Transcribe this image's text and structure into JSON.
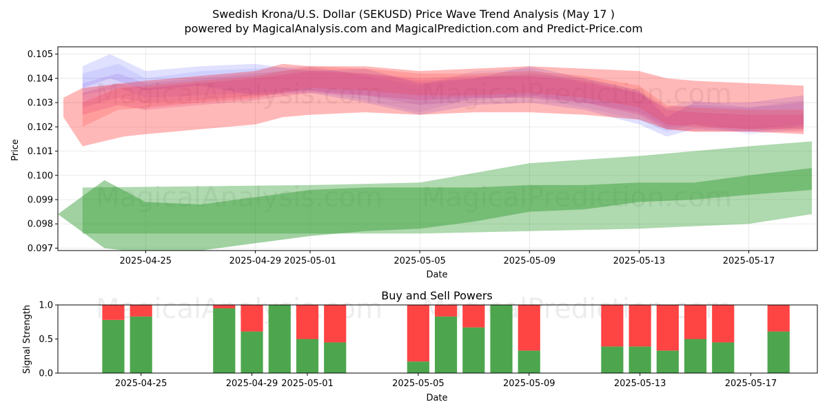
{
  "chart_data": [
    {
      "type": "area",
      "title": "Swedish Krona/U.S. Dollar (SEKUSD) Price Wave Trend Analysis (May 17 )",
      "subtitle": "powered by MagicalAnalysis.com and MagicalPrediction.com and Predict-Price.com",
      "xlabel": "Date",
      "ylabel": "Price",
      "xlim": [
        -3.2,
        24.5
      ],
      "ylim": [
        0.0969,
        0.1053
      ],
      "xticks": [
        {
          "x": 0,
          "label": "2025-04-25"
        },
        {
          "x": 4,
          "label": "2025-04-29"
        },
        {
          "x": 6,
          "label": "2025-05-01"
        },
        {
          "x": 10,
          "label": "2025-05-05"
        },
        {
          "x": 14,
          "label": "2025-05-09"
        },
        {
          "x": 18,
          "label": "2025-05-13"
        },
        {
          "x": 22,
          "label": "2025-05-17"
        }
      ],
      "yticks": [
        {
          "y": 0.097,
          "label": "0.097"
        },
        {
          "y": 0.098,
          "label": "0.098"
        },
        {
          "y": 0.099,
          "label": "0.099"
        },
        {
          "y": 0.1,
          "label": "0.100"
        },
        {
          "y": 0.101,
          "label": "0.101"
        },
        {
          "y": 0.102,
          "label": "0.102"
        },
        {
          "y": 0.103,
          "label": "0.103"
        },
        {
          "y": 0.104,
          "label": "0.104"
        },
        {
          "y": 0.105,
          "label": "0.105"
        }
      ],
      "grid": true,
      "watermarks": [
        "MagicalAnalysis.com",
        "MagicalPrediction.com"
      ],
      "series": [
        {
          "name": "blue-wave-1",
          "color": "#0000ff",
          "opacity": 0.12,
          "x": [
            -2.3,
            -1.3,
            0,
            2,
            4,
            6,
            8,
            10,
            12,
            14,
            16,
            18,
            19,
            20,
            22,
            24
          ],
          "upper": [
            0.1045,
            0.105,
            0.1043,
            0.1045,
            0.1046,
            0.1043,
            0.1044,
            0.1038,
            0.104,
            0.1045,
            0.104,
            0.1035,
            0.1024,
            0.103,
            0.103,
            0.1033
          ],
          "lower": [
            0.1036,
            0.104,
            0.1035,
            0.1037,
            0.1033,
            0.1034,
            0.103,
            0.1025,
            0.1029,
            0.103,
            0.1027,
            0.1021,
            0.1016,
            0.1019,
            0.1018,
            0.102
          ]
        },
        {
          "name": "blue-wave-2",
          "color": "#4040ff",
          "opacity": 0.1,
          "x": [
            -2.3,
            -1,
            0,
            2,
            4,
            6,
            8,
            10,
            12,
            14,
            16,
            18,
            19,
            20,
            22,
            24
          ],
          "upper": [
            0.1042,
            0.1046,
            0.104,
            0.1043,
            0.1044,
            0.1045,
            0.1041,
            0.1037,
            0.1043,
            0.1044,
            0.1038,
            0.1034,
            0.1028,
            0.1031,
            0.1028,
            0.1031
          ],
          "lower": [
            0.1033,
            0.1036,
            0.1032,
            0.1033,
            0.1034,
            0.1035,
            0.1031,
            0.1026,
            0.1032,
            0.1032,
            0.1028,
            0.1023,
            0.1018,
            0.1021,
            0.1017,
            0.1019
          ]
        },
        {
          "name": "purple-wave-1",
          "color": "#8040d0",
          "opacity": 0.14,
          "x": [
            -2.3,
            -1,
            0,
            2,
            4,
            6,
            8,
            10,
            12,
            14,
            16,
            18,
            19,
            20,
            22,
            24
          ],
          "upper": [
            0.1038,
            0.1042,
            0.1038,
            0.104,
            0.1042,
            0.1044,
            0.1042,
            0.1039,
            0.104,
            0.1042,
            0.104,
            0.1035,
            0.1028,
            0.1029,
            0.1028,
            0.103
          ],
          "lower": [
            0.1028,
            0.1032,
            0.103,
            0.1031,
            0.1033,
            0.1035,
            0.1033,
            0.1029,
            0.1031,
            0.1033,
            0.103,
            0.1026,
            0.102,
            0.1021,
            0.1019,
            0.1021
          ]
        },
        {
          "name": "red-wave-wide",
          "color": "#ff0000",
          "opacity": 0.28,
          "x": [
            -3.0,
            -2.3,
            -0.8,
            0,
            2,
            4,
            5,
            6,
            8,
            10,
            12,
            14,
            16,
            18,
            19,
            20,
            22,
            24
          ],
          "upper": [
            0.1032,
            0.1036,
            0.1038,
            0.1039,
            0.1041,
            0.1043,
            0.1046,
            0.1045,
            0.1045,
            0.1043,
            0.1044,
            0.1045,
            0.1044,
            0.1043,
            0.104,
            0.1039,
            0.1038,
            0.1037
          ],
          "lower": [
            0.1024,
            0.1012,
            0.1016,
            0.1017,
            0.1019,
            0.1021,
            0.1024,
            0.1025,
            0.1026,
            0.1025,
            0.1026,
            0.1026,
            0.1025,
            0.1023,
            0.1019,
            0.1018,
            0.1018,
            0.1017
          ]
        },
        {
          "name": "red-wave-1",
          "color": "#ff3030",
          "opacity": 0.2,
          "x": [
            -2.3,
            -1,
            0,
            2,
            4,
            6,
            8,
            10,
            12,
            14,
            16,
            18,
            19,
            20,
            22,
            24
          ],
          "upper": [
            0.103,
            0.1036,
            0.1037,
            0.1039,
            0.1041,
            0.1045,
            0.1044,
            0.1042,
            0.1042,
            0.1043,
            0.1041,
            0.1037,
            0.1029,
            0.1028,
            0.1027,
            0.1027
          ],
          "lower": [
            0.102,
            0.1027,
            0.1028,
            0.103,
            0.1032,
            0.1036,
            0.1035,
            0.1033,
            0.1033,
            0.1034,
            0.1032,
            0.1028,
            0.1021,
            0.102,
            0.1019,
            0.1019
          ]
        },
        {
          "name": "red-wave-2",
          "color": "#e0206a",
          "opacity": 0.18,
          "x": [
            -2.3,
            -1,
            0,
            2,
            4,
            6,
            8,
            10,
            12,
            14,
            16,
            18,
            19,
            20,
            22,
            24
          ],
          "upper": [
            0.1034,
            0.1038,
            0.1036,
            0.1038,
            0.104,
            0.1043,
            0.1042,
            0.104,
            0.1041,
            0.1041,
            0.1039,
            0.1034,
            0.1027,
            0.1026,
            0.1025,
            0.1025
          ],
          "lower": [
            0.1025,
            0.1029,
            0.1027,
            0.1029,
            0.1031,
            0.1034,
            0.1033,
            0.1031,
            0.1032,
            0.1032,
            0.103,
            0.1025,
            0.1019,
            0.1018,
            0.1018,
            0.1018
          ]
        },
        {
          "name": "green-wave-wide",
          "color": "#2e9a2e",
          "opacity": 0.38,
          "x": [
            -2.3,
            6,
            10,
            14,
            18,
            22,
            24.3
          ],
          "upper": [
            0.0995,
            0.0996,
            0.0997,
            0.1005,
            0.1008,
            0.1012,
            0.1014
          ],
          "lower": [
            0.0976,
            0.0976,
            0.0976,
            0.0977,
            0.0978,
            0.098,
            0.0984
          ]
        },
        {
          "name": "green-wave-inner",
          "color": "#2e9a2e",
          "opacity": 0.45,
          "x": [
            -3.2,
            -1.5,
            0,
            2,
            4,
            6,
            8,
            10,
            12,
            14,
            16,
            18,
            20,
            22,
            24.3
          ],
          "upper": [
            0.0984,
            0.0998,
            0.0989,
            0.0988,
            0.0991,
            0.0994,
            0.0995,
            0.0995,
            0.0995,
            0.0996,
            0.0996,
            0.0997,
            0.0997,
            0.1,
            0.1003
          ],
          "lower": [
            0.0984,
            0.097,
            0.0968,
            0.0969,
            0.0972,
            0.0975,
            0.0977,
            0.0978,
            0.0981,
            0.0985,
            0.0986,
            0.0989,
            0.099,
            0.0992,
            0.0994
          ]
        }
      ]
    },
    {
      "type": "bar",
      "title": "Buy and Sell Powers",
      "xlabel": "Date",
      "ylabel": "Signal Strength",
      "ylim": [
        0,
        1.0
      ],
      "yticks": [
        {
          "y": 0.0,
          "label": "0.0"
        },
        {
          "y": 0.5,
          "label": "0.5"
        },
        {
          "y": 1.0,
          "label": "1.0"
        }
      ],
      "xticks": [
        {
          "x": 0,
          "label": "2025-04-25"
        },
        {
          "x": 4,
          "label": "2025-04-29"
        },
        {
          "x": 6,
          "label": "2025-05-01"
        },
        {
          "x": 10,
          "label": "2025-05-05"
        },
        {
          "x": 14,
          "label": "2025-05-09"
        },
        {
          "x": 18,
          "label": "2025-05-13"
        },
        {
          "x": 22,
          "label": "2025-05-17"
        }
      ],
      "xlim": [
        -3.0,
        24.4
      ],
      "series": [
        {
          "name": "Buy",
          "color": "#4da64d",
          "x": [
            -1,
            0,
            3,
            4,
            5,
            6,
            7,
            10,
            11,
            12,
            13,
            14,
            17,
            18,
            19,
            20,
            21,
            23
          ],
          "values": [
            0.78,
            0.83,
            0.95,
            0.61,
            1.0,
            0.5,
            0.45,
            0.17,
            0.83,
            0.67,
            1.0,
            0.33,
            0.39,
            0.39,
            0.33,
            0.5,
            0.45,
            0.61
          ]
        },
        {
          "name": "Sell",
          "color": "#ff4444",
          "x": [
            -1,
            0,
            3,
            4,
            5,
            6,
            7,
            10,
            11,
            12,
            13,
            14,
            17,
            18,
            19,
            20,
            21,
            23
          ],
          "values": [
            0.22,
            0.17,
            0.05,
            0.39,
            0.0,
            0.5,
            0.55,
            0.83,
            0.17,
            0.33,
            0.0,
            0.67,
            0.61,
            0.61,
            0.67,
            0.5,
            0.55,
            0.39
          ]
        }
      ],
      "watermarks": [
        "MagicalAnalysis.com",
        "MagicalPrediction.com"
      ]
    }
  ]
}
